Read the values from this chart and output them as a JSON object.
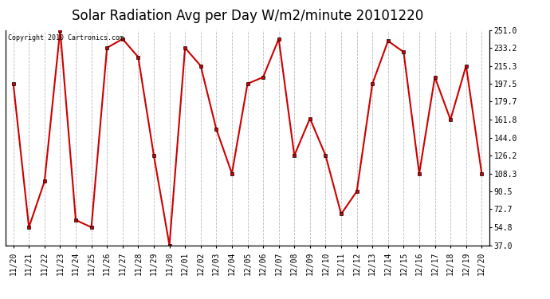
{
  "title": "Solar Radiation Avg per Day W/m2/minute 20101220",
  "copyright_text": "Copyright 2010 Cartronics.com",
  "labels": [
    "11/20",
    "11/21",
    "11/22",
    "11/23",
    "11/24",
    "11/25",
    "11/26",
    "11/27",
    "11/28",
    "11/29",
    "11/30",
    "12/01",
    "12/02",
    "12/03",
    "12/04",
    "12/05",
    "12/06",
    "12/07",
    "12/08",
    "12/09",
    "12/10",
    "12/11",
    "12/12",
    "12/13",
    "12/14",
    "12/15",
    "12/16",
    "12/17",
    "12/18",
    "12/19",
    "12/20"
  ],
  "values": [
    197.5,
    54.8,
    100.5,
    251.0,
    62.0,
    54.8,
    233.2,
    242.0,
    224.0,
    126.2,
    37.0,
    233.2,
    215.3,
    152.5,
    108.3,
    197.5,
    204.0,
    242.0,
    126.2,
    163.0,
    126.2,
    68.0,
    90.5,
    197.5,
    240.0,
    229.0,
    108.3,
    204.0,
    161.8,
    215.3,
    108.3
  ],
  "yticks": [
    37.0,
    54.8,
    72.7,
    90.5,
    108.3,
    126.2,
    144.0,
    161.8,
    179.7,
    197.5,
    215.3,
    233.2,
    251.0
  ],
  "ytick_labels": [
    "37.0",
    "54.8",
    "72.7",
    "90.5",
    "108.3",
    "126.2",
    "144.0",
    "161.8",
    "179.7",
    "197.5",
    "215.3",
    "233.2",
    "251.0"
  ],
  "line_color": "#cc0000",
  "marker_edge_color": "#000000",
  "bg_color": "#ffffff",
  "grid_color": "#bbbbbb",
  "title_fontsize": 12,
  "tick_fontsize": 7,
  "copyright_fontsize": 6,
  "ylim": [
    37.0,
    251.0
  ]
}
